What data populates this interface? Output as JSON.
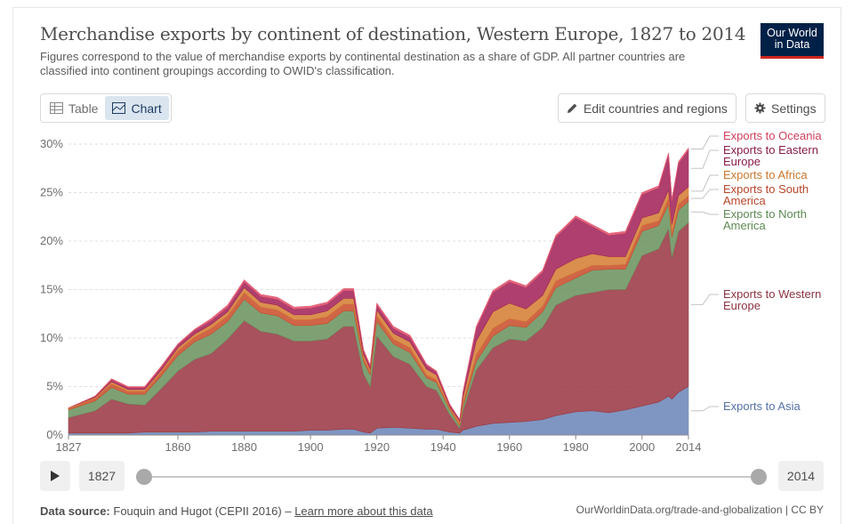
{
  "header": {
    "title": "Merchandise exports by continent of destination, Western Europe, 1827 to 2014",
    "subtitle": "Figures correspond to the value of merchandise exports by continental destination as a share of GDP. All partner countries are classified into continent groupings according to OWID's classification.",
    "logo_line1": "Our World",
    "logo_line2": "in Data"
  },
  "controls": {
    "tab_table": "Table",
    "tab_chart": "Chart",
    "edit_button": "Edit countries and regions",
    "settings_button": "Settings"
  },
  "timeline": {
    "start_year": "1827",
    "end_year": "2014"
  },
  "footer": {
    "source_label": "Data source:",
    "source_text": "Fouquin and Hugot (CEPII 2016) –",
    "learn_more": "Learn more about this data",
    "right": "OurWorldinData.org/trade-and-globalization | CC BY"
  },
  "colors": {
    "asia": "#6d88b9",
    "western_europe": "#9b3a45",
    "north_america": "#6c9461",
    "south_america": "#c9502e",
    "africa": "#d58036",
    "eastern_europe": "#a3245a",
    "oceania": "#e0556e"
  },
  "chart_data": {
    "type": "area",
    "stacked": true,
    "xlim": [
      1827,
      2014
    ],
    "ylim": [
      0,
      30
    ],
    "ytick_labels": [
      "0%",
      "5%",
      "10%",
      "15%",
      "20%",
      "25%",
      "30%"
    ],
    "yticks": [
      0,
      5,
      10,
      15,
      20,
      25,
      30
    ],
    "xticks": [
      1827,
      1860,
      1880,
      1900,
      1920,
      1940,
      1960,
      1980,
      2000,
      2014
    ],
    "xtick_labels": [
      "1827",
      "1860",
      "1880",
      "1900",
      "1920",
      "1940",
      "1960",
      "1980",
      "2000",
      "2014"
    ],
    "grid": true,
    "legend": "right, inline labels",
    "x": [
      1827,
      1835,
      1840,
      1845,
      1850,
      1855,
      1860,
      1865,
      1870,
      1875,
      1880,
      1885,
      1890,
      1895,
      1900,
      1905,
      1910,
      1913,
      1916,
      1918,
      1920,
      1925,
      1930,
      1935,
      1938,
      1942,
      1945,
      1946,
      1950,
      1955,
      1960,
      1965,
      1970,
      1974,
      1980,
      1985,
      1990,
      1995,
      2000,
      2005,
      2008,
      2009,
      2011,
      2014
    ],
    "series": [
      {
        "name": "Exports to Asia",
        "values": [
          0.2,
          0.2,
          0.2,
          0.2,
          0.3,
          0.3,
          0.3,
          0.3,
          0.4,
          0.4,
          0.4,
          0.4,
          0.4,
          0.4,
          0.5,
          0.5,
          0.6,
          0.6,
          0.3,
          0.2,
          0.7,
          0.8,
          0.7,
          0.6,
          0.6,
          0.3,
          0.2,
          0.5,
          0.9,
          1.2,
          1.3,
          1.4,
          1.6,
          2.0,
          2.4,
          2.5,
          2.3,
          2.6,
          3.0,
          3.4,
          4.0,
          3.7,
          4.4,
          5.0
        ]
      },
      {
        "name": "Exports to Western Europe",
        "values": [
          1.6,
          2.3,
          3.5,
          3.0,
          2.8,
          4.5,
          6.3,
          7.5,
          8.0,
          9.5,
          11.4,
          10.3,
          10.0,
          9.3,
          9.2,
          9.4,
          10.6,
          10.6,
          6.0,
          4.8,
          9.5,
          7.3,
          6.6,
          4.4,
          4.0,
          1.8,
          0.5,
          2.0,
          5.8,
          7.8,
          8.6,
          8.3,
          9.5,
          11.4,
          12.0,
          12.2,
          12.7,
          12.4,
          15.5,
          15.8,
          17.3,
          14.6,
          16.6,
          16.9
        ]
      },
      {
        "name": "Exports to North America",
        "values": [
          0.8,
          1.0,
          1.2,
          1.0,
          1.1,
          1.3,
          1.6,
          1.8,
          2.0,
          1.8,
          2.2,
          1.9,
          1.9,
          1.6,
          1.6,
          1.6,
          1.6,
          1.6,
          1.3,
          1.2,
          1.5,
          1.3,
          1.2,
          0.9,
          0.8,
          0.5,
          0.3,
          0.5,
          0.9,
          1.2,
          1.4,
          1.4,
          1.6,
          1.8,
          1.8,
          2.3,
          2.1,
          2.1,
          2.5,
          2.4,
          2.5,
          2.1,
          2.2,
          2.2
        ]
      },
      {
        "name": "Exports to South America",
        "values": [
          0.1,
          0.3,
          0.4,
          0.3,
          0.3,
          0.4,
          0.5,
          0.5,
          0.6,
          0.6,
          0.7,
          0.6,
          0.6,
          0.6,
          0.6,
          0.7,
          0.7,
          0.7,
          0.3,
          0.3,
          0.6,
          0.5,
          0.5,
          0.3,
          0.3,
          0.1,
          0.1,
          0.3,
          0.7,
          0.8,
          0.7,
          0.6,
          0.6,
          0.7,
          0.6,
          0.5,
          0.4,
          0.5,
          0.6,
          0.5,
          0.6,
          0.5,
          0.6,
          0.6
        ]
      },
      {
        "name": "Exports to Africa",
        "values": [
          0.1,
          0.1,
          0.2,
          0.2,
          0.2,
          0.2,
          0.3,
          0.3,
          0.4,
          0.4,
          0.5,
          0.5,
          0.5,
          0.5,
          0.5,
          0.6,
          0.6,
          0.6,
          0.4,
          0.3,
          0.6,
          0.6,
          0.6,
          0.6,
          0.5,
          0.2,
          0.3,
          0.6,
          1.4,
          1.7,
          1.6,
          1.3,
          1.1,
          1.2,
          1.4,
          1.2,
          0.9,
          0.8,
          0.8,
          0.8,
          0.9,
          0.8,
          0.9,
          0.9
        ]
      },
      {
        "name": "Exports to Eastern Europe",
        "values": [
          0.0,
          0.1,
          0.2,
          0.2,
          0.2,
          0.3,
          0.3,
          0.4,
          0.4,
          0.5,
          0.6,
          0.6,
          0.6,
          0.6,
          0.7,
          0.7,
          0.8,
          0.8,
          0.4,
          0.3,
          0.5,
          0.5,
          0.5,
          0.4,
          0.3,
          0.2,
          0.2,
          0.5,
          1.3,
          2.0,
          2.2,
          2.2,
          2.4,
          3.3,
          4.2,
          2.8,
          2.2,
          2.4,
          2.4,
          2.6,
          3.6,
          2.4,
          3.3,
          3.8
        ]
      },
      {
        "name": "Exports to Oceania",
        "values": [
          0.0,
          0.0,
          0.1,
          0.1,
          0.1,
          0.1,
          0.1,
          0.1,
          0.2,
          0.2,
          0.2,
          0.2,
          0.2,
          0.2,
          0.2,
          0.2,
          0.2,
          0.2,
          0.1,
          0.1,
          0.2,
          0.2,
          0.2,
          0.1,
          0.1,
          0.1,
          0.0,
          0.1,
          0.2,
          0.2,
          0.2,
          0.2,
          0.2,
          0.2,
          0.2,
          0.2,
          0.2,
          0.2,
          0.2,
          0.2,
          0.2,
          0.2,
          0.2,
          0.2
        ]
      }
    ],
    "legend_labels": [
      {
        "key": "oceania",
        "lines": [
          "Exports to Oceania"
        ]
      },
      {
        "key": "eastern_europe",
        "lines": [
          "Exports to Eastern",
          "Europe"
        ]
      },
      {
        "key": "africa",
        "lines": [
          "Exports to Africa"
        ]
      },
      {
        "key": "south_america",
        "lines": [
          "Exports to South",
          "America"
        ]
      },
      {
        "key": "north_america",
        "lines": [
          "Exports to North",
          "America"
        ]
      },
      {
        "key": "western_europe",
        "lines": [
          "Exports to Western",
          "Europe"
        ]
      },
      {
        "key": "asia",
        "lines": [
          "Exports to Asia"
        ]
      }
    ]
  }
}
